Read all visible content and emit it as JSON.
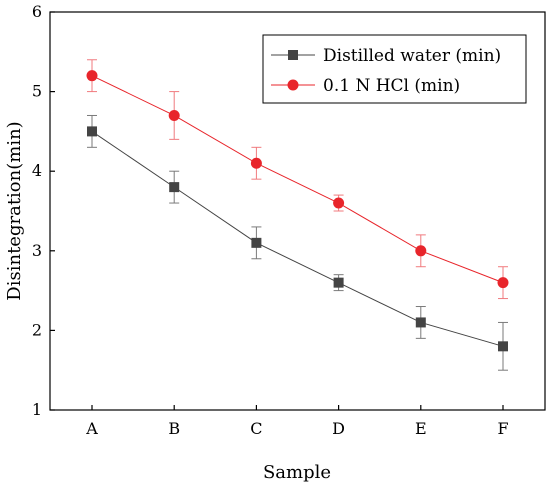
{
  "chart_data": {
    "type": "line",
    "title": "",
    "xlabel": "Sample",
    "ylabel": "Disintegration(min)",
    "categories": [
      "A",
      "B",
      "C",
      "D",
      "E",
      "F"
    ],
    "ylim": [
      1,
      6
    ],
    "yticks": [
      "1",
      "2",
      "3",
      "4",
      "5",
      "6"
    ],
    "grid": false,
    "legend_position": "top-right",
    "series": [
      {
        "name": "Distilled water (min)",
        "color": "#444444",
        "marker": "square",
        "values": [
          4.5,
          3.8,
          3.1,
          2.6,
          2.1,
          1.8
        ],
        "error": [
          0.2,
          0.2,
          0.2,
          0.1,
          0.2,
          0.3
        ]
      },
      {
        "name": "0.1 N HCl (min)",
        "color": "#e8252b",
        "marker": "circle",
        "values": [
          5.2,
          4.7,
          4.1,
          3.6,
          3.0,
          2.6
        ],
        "error": [
          0.2,
          0.3,
          0.2,
          0.1,
          0.2,
          0.2
        ]
      }
    ]
  }
}
